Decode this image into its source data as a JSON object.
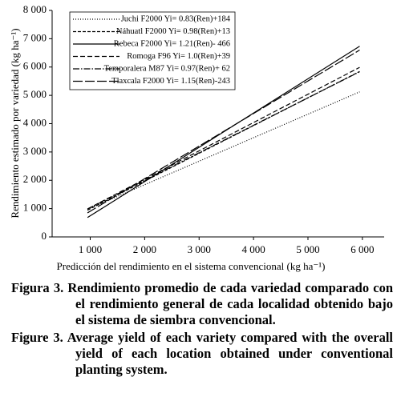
{
  "chart_data": {
    "type": "line",
    "xlabel": "Predicción del rendimiento en el sistema convencional (kg ha⁻¹)",
    "ylabel": "Rendimiento estimado por variedad (kg ha⁻¹)",
    "x": [
      950,
      5950
    ],
    "xlim": [
      300,
      6400
    ],
    "ylim": [
      0,
      8000
    ],
    "xticks": [
      {
        "value": 1000,
        "label": "1 000"
      },
      {
        "value": 2000,
        "label": "2 000"
      },
      {
        "value": 3000,
        "label": "3 000"
      },
      {
        "value": 4000,
        "label": "4 000"
      },
      {
        "value": 5000,
        "label": "5 000"
      },
      {
        "value": 6000,
        "label": "6 000"
      }
    ],
    "yticks": [
      0,
      {
        "value": 1000,
        "label": "1 000"
      },
      {
        "value": 2000,
        "label": "2 000"
      },
      {
        "value": 3000,
        "label": "3 000"
      },
      {
        "value": 4000,
        "label": "4 000"
      },
      {
        "value": 5000,
        "label": "5 000"
      },
      {
        "value": 6000,
        "label": "6 000"
      },
      {
        "value": 7000,
        "label": "7 000"
      },
      {
        "value": 8000,
        "label": "8 000"
      }
    ],
    "grid": false,
    "legend": "upper left",
    "series": [
      {
        "name": "Juchi F2000 Yi= 0.83(Ren)+184",
        "color": "#000000",
        "dash": "1,2",
        "values": [
          973,
          5123
        ]
      },
      {
        "name": "Náhuatl F2000 Yi= 0.98(Ren)+13",
        "color": "#000000",
        "dash": "4,2",
        "values": [
          944,
          5844
        ]
      },
      {
        "name": "Rebeca F2000 Yi= 1.21(Ren)- 466",
        "color": "#000000",
        "dash": "none",
        "values": [
          684,
          6734
        ]
      },
      {
        "name": "Romoga F96 Yi= 1.0(Ren)+39",
        "color": "#000000",
        "dash": "6,3",
        "values": [
          989,
          5989
        ]
      },
      {
        "name": "Temporalera M87 Yi= 0.97(Ren)+ 62",
        "color": "#000000",
        "dash": "8,2,1.5,2",
        "values": [
          984,
          5834
        ]
      },
      {
        "name": "Tlaxcala F2000 Yi= 1.15(Ren)-243",
        "color": "#000000",
        "dash": "12,3",
        "values": [
          850,
          6600
        ]
      }
    ]
  },
  "captions": {
    "spanish": "Figura 3. Rendimiento promedio de cada variedad comparado con el rendimiento general de cada localidad obtenido bajo el sistema de siembra convencional.",
    "english": "Figure 3. Average yield of each variety compared with the overall yield of each location obtained under conventional planting system."
  }
}
